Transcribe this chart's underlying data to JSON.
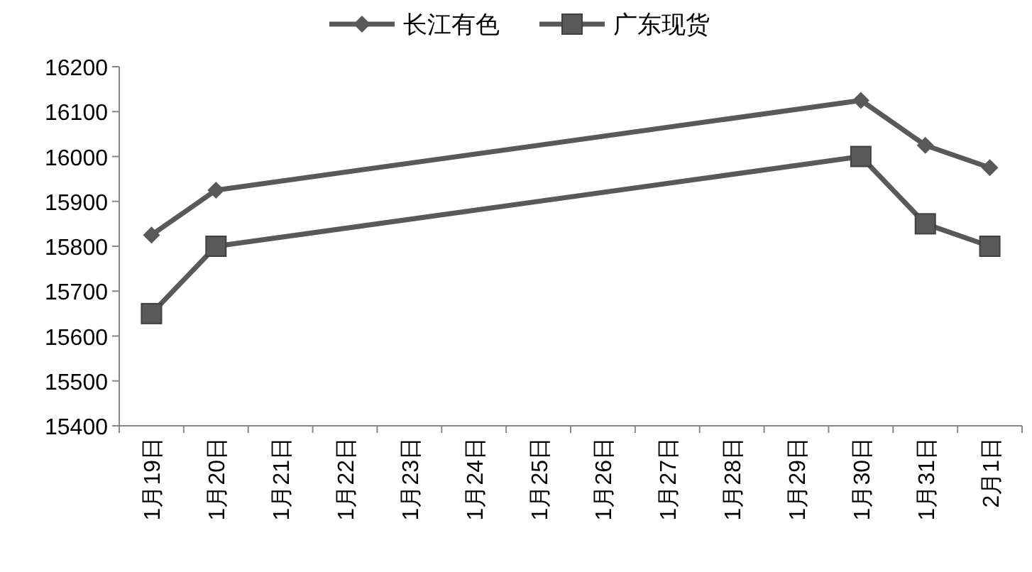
{
  "chart_data": {
    "type": "line",
    "categories": [
      "1月19日",
      "1月20日",
      "1月21日",
      "1月22日",
      "1月23日",
      "1月24日",
      "1月25日",
      "1月26日",
      "1月27日",
      "1月28日",
      "1月29日",
      "1月30日",
      "1月31日",
      "2月1日"
    ],
    "series": [
      {
        "name": "长江有色",
        "color": "#595959",
        "marker": "diamond",
        "values": [
          15825,
          15925,
          null,
          null,
          null,
          null,
          null,
          null,
          null,
          null,
          null,
          16125,
          16025,
          15975
        ]
      },
      {
        "name": "广东现货",
        "color": "#595959",
        "marker": "square",
        "values": [
          15650,
          15800,
          null,
          null,
          null,
          null,
          null,
          null,
          null,
          null,
          null,
          16000,
          15850,
          15800
        ]
      }
    ],
    "ylim": [
      15400,
      16200
    ],
    "yticks": [
      15400,
      15500,
      15600,
      15700,
      15800,
      15900,
      16000,
      16100,
      16200
    ],
    "grid": false,
    "legend": "top"
  }
}
